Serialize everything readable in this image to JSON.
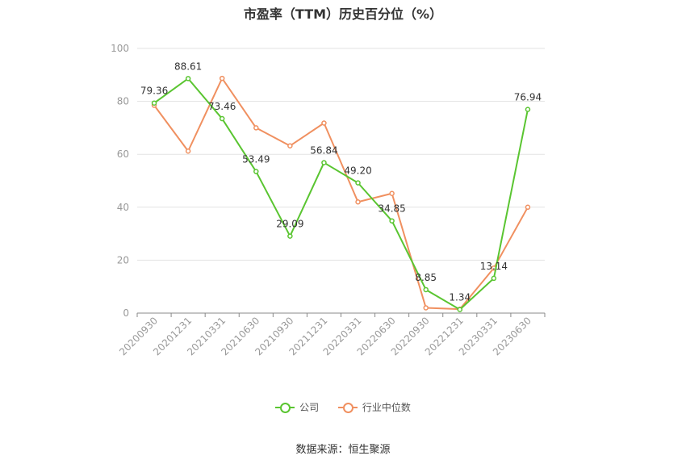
{
  "title": "市盈率（TTM）历史百分位（%）",
  "source": "数据来源：恒生聚源",
  "chart_data": {
    "type": "line",
    "categories": [
      "20200930",
      "20201231",
      "20210331",
      "20210630",
      "20210930",
      "20211231",
      "20220331",
      "20220630",
      "20220930",
      "20221231",
      "20230331",
      "20230630"
    ],
    "series": [
      {
        "name": "公司",
        "color": "#5ac531",
        "values": [
          79.36,
          88.61,
          73.46,
          53.49,
          29.09,
          56.84,
          49.2,
          34.85,
          8.85,
          1.34,
          13.14,
          76.94
        ],
        "labels": [
          "79.36",
          "88.61",
          "73.46",
          "53.49",
          "29.09",
          "56.84",
          "49.20",
          "34.85",
          "8.85",
          "1.34",
          "13.14",
          "76.94"
        ]
      },
      {
        "name": "行业中位数",
        "color": "#f09060",
        "values": [
          78.5,
          61.2,
          88.7,
          70.0,
          63.2,
          71.8,
          42.0,
          45.2,
          2.0,
          1.5,
          17.0,
          40.0
        ]
      }
    ],
    "ylim": [
      0,
      100
    ],
    "yticks": [
      0,
      20,
      40,
      60,
      80,
      100
    ],
    "grid": true,
    "legend_position": "bottom"
  }
}
